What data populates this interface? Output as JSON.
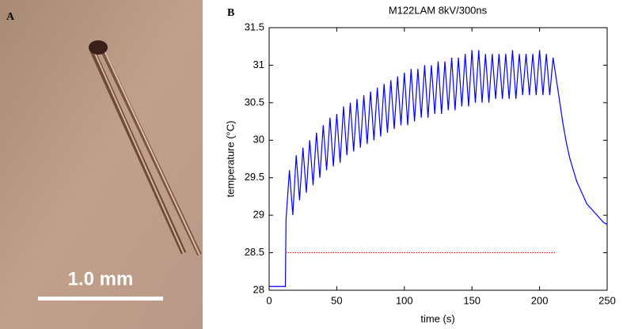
{
  "panel_a": {
    "label": "A",
    "scale_bar": "1.0 mm"
  },
  "chart_data": {
    "type": "line",
    "panel_label": "B",
    "title": "M122LAM 8kV/300ns",
    "x_label": "time (s)",
    "y_label": "temperature (°C)",
    "xlim": [
      0,
      250
    ],
    "xticks": [
      0,
      50,
      100,
      150,
      200,
      250
    ],
    "ylim": [
      28,
      31.5
    ],
    "yticks": [
      28,
      28.5,
      29,
      29.5,
      30,
      30.5,
      31,
      31.5
    ],
    "grid": false,
    "series": [
      {
        "color": "#0000ff",
        "style": "solid",
        "x": [
          0,
          2.5,
          5,
          7.5,
          10,
          12,
          12.5,
          15,
          17.5,
          20,
          22.5,
          25,
          27.5,
          30,
          32.5,
          35,
          37.5,
          40,
          42.5,
          45,
          47.5,
          50,
          52.5,
          55,
          57.5,
          60,
          62.5,
          65,
          67.5,
          70,
          72.5,
          75,
          77.5,
          80,
          82.5,
          85,
          87.5,
          90,
          92.5,
          95,
          97.5,
          100,
          102.5,
          105,
          107.5,
          110,
          112.5,
          115,
          117.5,
          120,
          122.5,
          125,
          127.5,
          130,
          132.5,
          135,
          137.5,
          140,
          142.5,
          145,
          147.5,
          150,
          152.5,
          155,
          157.5,
          160,
          162.5,
          165,
          167.5,
          170,
          172.5,
          175,
          177.5,
          180,
          182.5,
          185,
          187.5,
          190,
          192.5,
          195,
          197.5,
          200,
          202.5,
          205,
          207.5,
          210,
          212.5,
          215,
          217.5,
          220,
          222.5,
          225,
          227.5,
          230,
          232.5,
          235,
          237.5,
          240,
          242.5,
          245,
          247.5,
          250
        ],
        "values": [
          28.05,
          28.05,
          28.05,
          28.05,
          28.05,
          28.05,
          28.95,
          29.6,
          29.0,
          29.8,
          29.2,
          29.9,
          29.3,
          30.0,
          29.4,
          30.1,
          29.5,
          30.2,
          29.6,
          30.3,
          29.65,
          30.35,
          29.7,
          30.45,
          29.8,
          30.5,
          29.85,
          30.55,
          29.9,
          30.6,
          29.95,
          30.65,
          30.0,
          30.7,
          30.05,
          30.75,
          30.1,
          30.8,
          30.15,
          30.85,
          30.2,
          30.9,
          30.2,
          30.95,
          30.25,
          30.95,
          30.3,
          31.0,
          30.3,
          31.0,
          30.35,
          31.05,
          30.35,
          31.05,
          30.4,
          31.1,
          30.4,
          31.1,
          30.45,
          31.15,
          30.45,
          31.2,
          30.5,
          31.2,
          30.5,
          31.15,
          30.5,
          31.15,
          30.55,
          31.15,
          30.55,
          31.15,
          30.55,
          31.2,
          30.55,
          31.15,
          30.6,
          31.15,
          30.6,
          31.15,
          30.6,
          31.2,
          30.6,
          31.15,
          30.6,
          31.1,
          30.8,
          30.5,
          30.2,
          29.95,
          29.75,
          29.6,
          29.45,
          29.35,
          29.25,
          29.15,
          29.1,
          29.05,
          29.0,
          28.95,
          28.9,
          28.88
        ]
      },
      {
        "color": "#ff0000",
        "style": "dotted",
        "x": [
          12,
          212
        ],
        "values": [
          28.5,
          28.5
        ]
      }
    ]
  }
}
